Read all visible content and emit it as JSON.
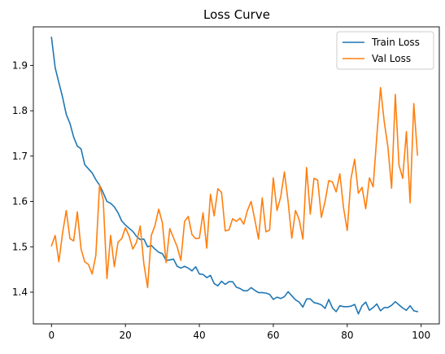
{
  "chart_data": {
    "type": "line",
    "title": "Loss Curve",
    "xlabel": "",
    "ylabel": "",
    "xlim": [
      -4.9,
      104.9
    ],
    "ylim": [
      1.33,
      1.985
    ],
    "xticks": [
      0,
      20,
      40,
      60,
      80,
      100
    ],
    "yticks": [
      1.4,
      1.5,
      1.6,
      1.7,
      1.8,
      1.9
    ],
    "xtick_labels": [
      "0",
      "20",
      "40",
      "60",
      "80",
      "100"
    ],
    "ytick_labels": [
      "1.4",
      "1.5",
      "1.6",
      "1.7",
      "1.8",
      "1.9"
    ],
    "grid": false,
    "legend_position": "top-right",
    "series": [
      {
        "name": "Train Loss",
        "color": "#1f77b4",
        "values": [
          1.962,
          1.895,
          1.862,
          1.83,
          1.792,
          1.772,
          1.742,
          1.722,
          1.716,
          1.681,
          1.672,
          1.663,
          1.648,
          1.636,
          1.619,
          1.6,
          1.596,
          1.588,
          1.575,
          1.557,
          1.548,
          1.541,
          1.534,
          1.523,
          1.516,
          1.517,
          1.5,
          1.503,
          1.495,
          1.488,
          1.485,
          1.47,
          1.471,
          1.473,
          1.457,
          1.453,
          1.457,
          1.453,
          1.447,
          1.456,
          1.44,
          1.439,
          1.432,
          1.437,
          1.419,
          1.414,
          1.424,
          1.417,
          1.423,
          1.423,
          1.411,
          1.408,
          1.403,
          1.403,
          1.41,
          1.404,
          1.399,
          1.399,
          1.398,
          1.395,
          1.384,
          1.389,
          1.386,
          1.39,
          1.401,
          1.392,
          1.383,
          1.378,
          1.367,
          1.385,
          1.385,
          1.377,
          1.375,
          1.372,
          1.364,
          1.384,
          1.365,
          1.357,
          1.37,
          1.368,
          1.368,
          1.369,
          1.373,
          1.352,
          1.37,
          1.378,
          1.36,
          1.366,
          1.374,
          1.359,
          1.366,
          1.366,
          1.371,
          1.379,
          1.372,
          1.365,
          1.36,
          1.37,
          1.359,
          1.357
        ]
      },
      {
        "name": "Val Loss",
        "color": "#ff7f0e",
        "values": [
          1.502,
          1.525,
          1.467,
          1.53,
          1.58,
          1.518,
          1.513,
          1.577,
          1.495,
          1.467,
          1.461,
          1.44,
          1.481,
          1.636,
          1.603,
          1.43,
          1.525,
          1.456,
          1.51,
          1.518,
          1.542,
          1.524,
          1.495,
          1.51,
          1.546,
          1.462,
          1.41,
          1.525,
          1.547,
          1.583,
          1.553,
          1.465,
          1.54,
          1.52,
          1.5,
          1.47,
          1.556,
          1.567,
          1.527,
          1.518,
          1.519,
          1.575,
          1.497,
          1.616,
          1.568,
          1.628,
          1.62,
          1.535,
          1.537,
          1.562,
          1.556,
          1.563,
          1.55,
          1.58,
          1.6,
          1.56,
          1.517,
          1.608,
          1.533,
          1.537,
          1.652,
          1.58,
          1.61,
          1.665,
          1.6,
          1.519,
          1.58,
          1.56,
          1.517,
          1.675,
          1.572,
          1.651,
          1.647,
          1.565,
          1.6,
          1.646,
          1.643,
          1.621,
          1.661,
          1.586,
          1.536,
          1.65,
          1.693,
          1.618,
          1.631,
          1.584,
          1.652,
          1.632,
          1.744,
          1.851,
          1.776,
          1.72,
          1.629,
          1.836,
          1.68,
          1.651,
          1.754,
          1.597,
          1.816,
          1.702
        ]
      }
    ]
  }
}
